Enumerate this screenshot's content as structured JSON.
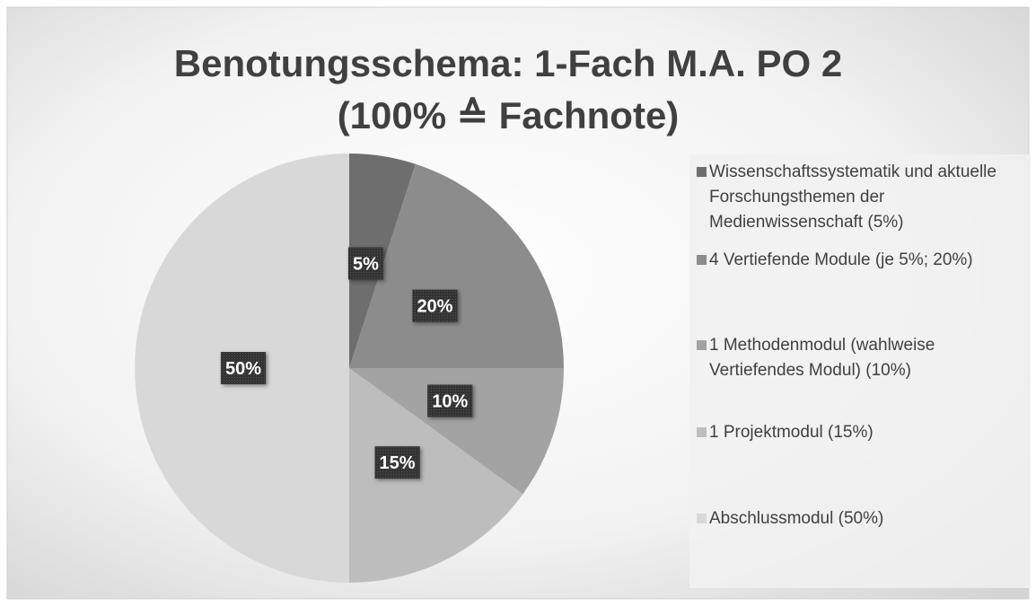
{
  "chart_data": {
    "type": "pie",
    "title": [
      "Benotungsschema: 1-Fach M.A. PO 2",
      "(100% ≙ Fachnote)"
    ],
    "categories": [
      "Wissenschaftssystematik und aktuelle Forschungsthemen der Medienwissenschaft (5%)",
      "4 Vertiefende Module (je 5%; 20%)",
      "1 Methodenmodul (wahlweise Vertiefendes Modul) (10%)",
      "1 Projektmodul (15%)",
      "Abschlussmodul (50%)"
    ],
    "values": [
      5,
      20,
      10,
      15,
      50
    ],
    "value_labels": [
      "5%",
      "20%",
      "10%",
      "15%",
      "50%"
    ],
    "colors": [
      "#6e6e6e",
      "#8c8c8c",
      "#a3a3a3",
      "#bdbdbd",
      "#d8d8d8"
    ],
    "legend": "right"
  }
}
